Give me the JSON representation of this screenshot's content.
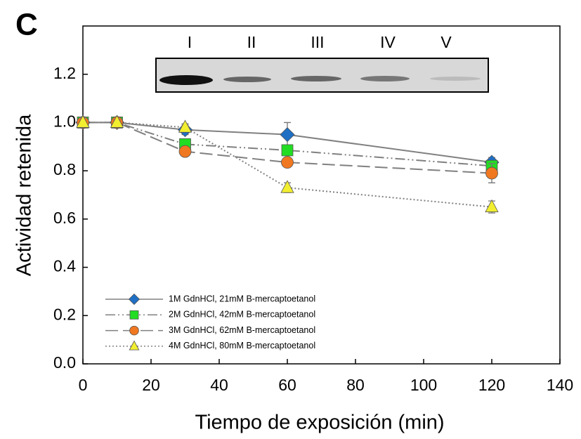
{
  "chart_data": {
    "type": "line",
    "panel_label": "C",
    "x_label": "Tiempo de exposición (min)",
    "y_label": "Actividad retenida",
    "inset_labels": [
      "I",
      "II",
      "III",
      "IV",
      "V"
    ],
    "x": [
      0,
      10,
      30,
      60,
      120
    ],
    "xlim": [
      0,
      140
    ],
    "xticks": [
      0,
      20,
      40,
      60,
      80,
      100,
      120,
      140
    ],
    "ylim": [
      0,
      1.4
    ],
    "yticks": [
      {
        "value": 0,
        "label": "0.0"
      },
      0.2,
      0.4,
      0.6,
      0.8,
      {
        "value": 1,
        "label": "1.0"
      },
      1.2
    ],
    "line_color": "#808080",
    "series": [
      {
        "name": "1M GdnHCl, 21mM B-mercaptoetanol",
        "color": "#1f6fc4",
        "marker": "diamond",
        "line_style": "solid",
        "values": [
          1.0,
          1.0,
          0.97,
          0.95,
          0.835
        ],
        "errors": [
          0.02,
          0.01,
          0.02,
          0.05,
          0.02
        ]
      },
      {
        "name": "2M GdnHCl, 42mM B-mercaptoetanol",
        "color": "#22dd22",
        "marker": "square",
        "line_style": "dashdotdot",
        "values": [
          1.0,
          1.0,
          0.91,
          0.885,
          0.82
        ],
        "errors": [
          0.02,
          0.01,
          0.02,
          0.02,
          0.02
        ]
      },
      {
        "name": "3M GdnHCl, 62mM B-mercaptoetanol",
        "color": "#f07820",
        "marker": "circle",
        "line_style": "dashed",
        "values": [
          1.0,
          1.0,
          0.88,
          0.835,
          0.79
        ],
        "errors": [
          0.02,
          0.01,
          0.015,
          0.015,
          0.04
        ]
      },
      {
        "name": "4M GdnHCl, 80mM B-mercaptoetanol",
        "color": "#f2ee30",
        "marker": "triangle",
        "line_style": "dotted",
        "values": [
          1.0,
          1.0,
          0.98,
          0.73,
          0.65
        ],
        "errors": [
          0.02,
          0.01,
          0.015,
          0.02,
          0.025
        ]
      }
    ]
  }
}
